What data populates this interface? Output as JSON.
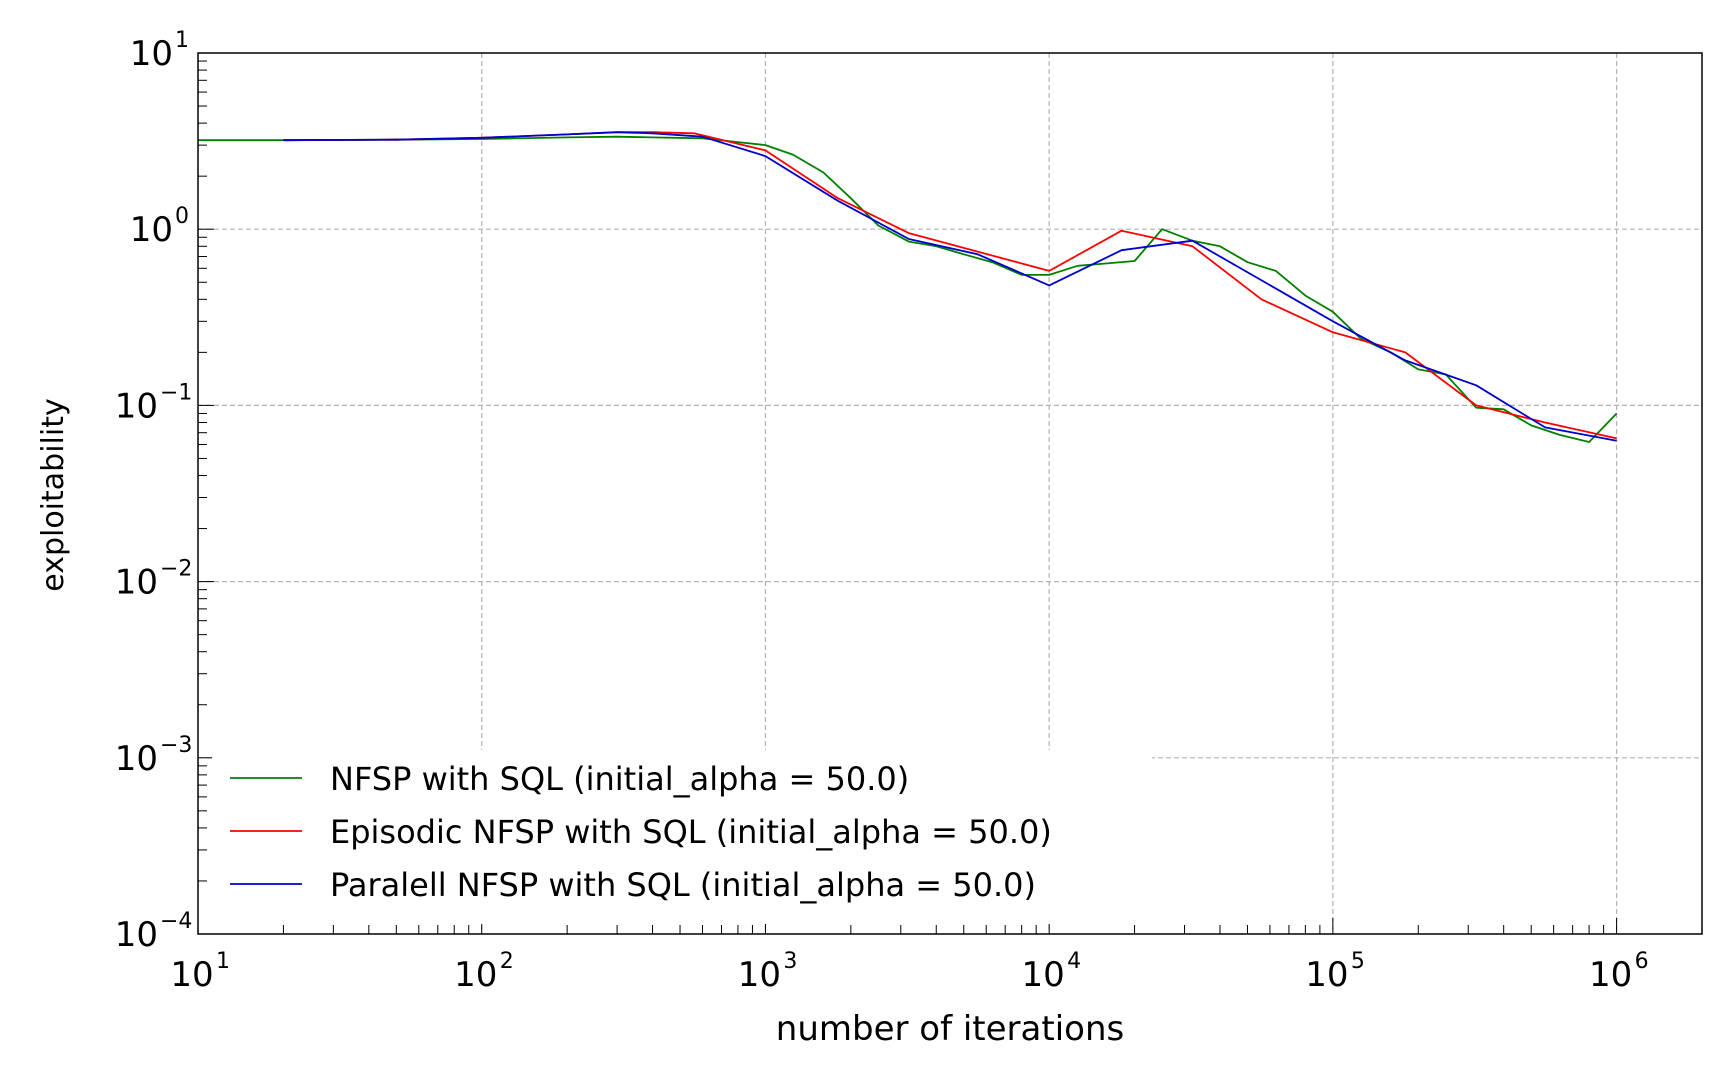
{
  "chart_data": {
    "type": "line",
    "title": "",
    "xlabel": "number of iterations",
    "ylabel": "exploitability",
    "xscale": "log",
    "yscale": "log",
    "xlim": [
      10,
      2000000
    ],
    "ylim": [
      0.0001,
      10
    ],
    "grid": true,
    "legend_position": "lower-left",
    "x_ticks": [
      {
        "value": 10,
        "base": "10",
        "exp": "1"
      },
      {
        "value": 100,
        "base": "10",
        "exp": "2"
      },
      {
        "value": 1000,
        "base": "10",
        "exp": "3"
      },
      {
        "value": 10000,
        "base": "10",
        "exp": "4"
      },
      {
        "value": 100000,
        "base": "10",
        "exp": "5"
      },
      {
        "value": 1000000,
        "base": "10",
        "exp": "6"
      }
    ],
    "y_ticks": [
      {
        "value": 10,
        "base": "10",
        "exp": "1"
      },
      {
        "value": 1,
        "base": "10",
        "exp": "0"
      },
      {
        "value": 0.1,
        "base": "10",
        "exp": "−1"
      },
      {
        "value": 0.01,
        "base": "10",
        "exp": "−2"
      },
      {
        "value": 0.001,
        "base": "10",
        "exp": "−3"
      },
      {
        "value": 0.0001,
        "base": "10",
        "exp": "−4"
      }
    ],
    "series": [
      {
        "name": "NFSP with SQL (initial_alpha = 50.0)",
        "color": "#008000",
        "points": [
          [
            10,
            3.2
          ],
          [
            20,
            3.2
          ],
          [
            50,
            3.22
          ],
          [
            100,
            3.25
          ],
          [
            200,
            3.32
          ],
          [
            300,
            3.35
          ],
          [
            400,
            3.32
          ],
          [
            600,
            3.28
          ],
          [
            800,
            3.12
          ],
          [
            1000,
            3.0
          ],
          [
            1250,
            2.65
          ],
          [
            1600,
            2.1
          ],
          [
            2000,
            1.5
          ],
          [
            2500,
            1.05
          ],
          [
            3200,
            0.85
          ],
          [
            4000,
            0.8
          ],
          [
            5000,
            0.72
          ],
          [
            6300,
            0.65
          ],
          [
            8000,
            0.55
          ],
          [
            10000,
            0.55
          ],
          [
            12600,
            0.62
          ],
          [
            16000,
            0.64
          ],
          [
            20000,
            0.66
          ],
          [
            25000,
            1.0
          ],
          [
            32000,
            0.86
          ],
          [
            40000,
            0.8
          ],
          [
            50000,
            0.65
          ],
          [
            63000,
            0.58
          ],
          [
            80000,
            0.42
          ],
          [
            100000,
            0.34
          ],
          [
            125000,
            0.24
          ],
          [
            160000,
            0.2
          ],
          [
            200000,
            0.16
          ],
          [
            250000,
            0.15
          ],
          [
            320000,
            0.097
          ],
          [
            400000,
            0.095
          ],
          [
            500000,
            0.077
          ],
          [
            630000,
            0.068
          ],
          [
            800000,
            0.062
          ],
          [
            1000000,
            0.09
          ]
        ]
      },
      {
        "name": "Episodic NFSP with SQL (initial_alpha = 50.0)",
        "color": "#ff0000",
        "points": [
          [
            20,
            3.2
          ],
          [
            50,
            3.22
          ],
          [
            100,
            3.3
          ],
          [
            200,
            3.45
          ],
          [
            300,
            3.55
          ],
          [
            400,
            3.55
          ],
          [
            560,
            3.5
          ],
          [
            1000,
            2.8
          ],
          [
            1800,
            1.5
          ],
          [
            3200,
            0.95
          ],
          [
            10000,
            0.58
          ],
          [
            18000,
            0.98
          ],
          [
            32000,
            0.8
          ],
          [
            56000,
            0.4
          ],
          [
            100000,
            0.26
          ],
          [
            180000,
            0.2
          ],
          [
            320000,
            0.1
          ],
          [
            560000,
            0.08
          ],
          [
            1000000,
            0.065
          ]
        ]
      },
      {
        "name": "Paralell NFSP with SQL (initial_alpha = 50.0)",
        "color": "#0000cc",
        "points": [
          [
            20,
            3.2
          ],
          [
            50,
            3.22
          ],
          [
            100,
            3.3
          ],
          [
            200,
            3.45
          ],
          [
            300,
            3.55
          ],
          [
            400,
            3.5
          ],
          [
            600,
            3.35
          ],
          [
            1000,
            2.6
          ],
          [
            1800,
            1.45
          ],
          [
            3200,
            0.88
          ],
          [
            5600,
            0.72
          ],
          [
            10000,
            0.48
          ],
          [
            18000,
            0.76
          ],
          [
            32000,
            0.86
          ],
          [
            100000,
            0.3
          ],
          [
            180000,
            0.18
          ],
          [
            320000,
            0.13
          ],
          [
            560000,
            0.075
          ],
          [
            1000000,
            0.063
          ]
        ]
      }
    ]
  }
}
